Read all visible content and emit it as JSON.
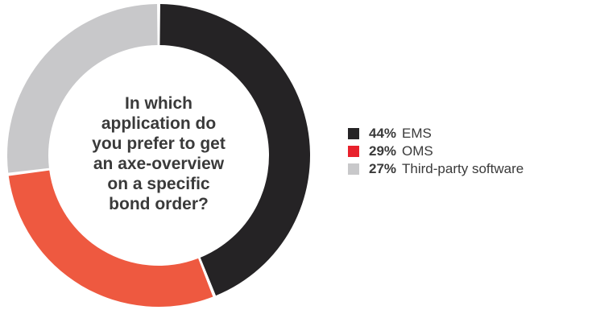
{
  "chart_data": {
    "type": "pie",
    "subtype": "donut",
    "center_text": "In which application do you prefer to get an axe-overview on a specific bond order?",
    "center_lines": [
      "In which",
      "application do",
      "you prefer to get",
      "an axe-overview",
      "on a specific",
      "bond order?"
    ],
    "slices": [
      {
        "label": "EMS",
        "value": 44,
        "value_label": "44%",
        "color": "#252325"
      },
      {
        "label": "OMS",
        "value": 29,
        "value_label": "29%",
        "color": "#ee5940"
      },
      {
        "label": "Third-party software",
        "value": 27,
        "value_label": "27%",
        "color": "#c8c8ca"
      }
    ],
    "legend_swatch_colors": [
      "#252325",
      "#e8212c",
      "#c8c8ca"
    ],
    "start_direction": "top",
    "legend_position": "right"
  }
}
